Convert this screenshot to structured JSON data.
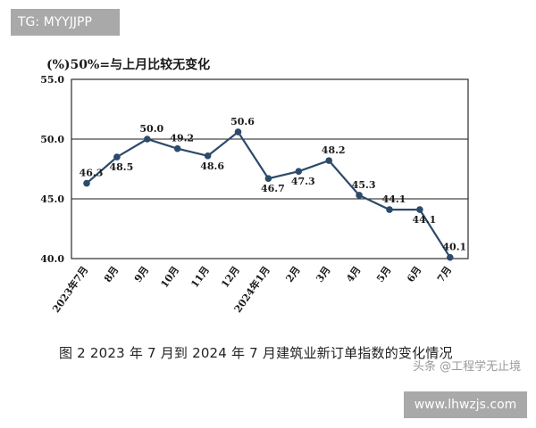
{
  "overlay_tag": "TG: MYYJJPP",
  "site_badge": "www.lhwzjs.com",
  "watermark": "头条 @工程学无止境",
  "caption": "图 2  2023 年 7 月到 2024 年 7 月建筑业新订单指数的变化情况",
  "chart_data": {
    "type": "line",
    "title": "(%)50%=与上月比较无变化",
    "categories": [
      "2023年7月",
      "8月",
      "9月",
      "10月",
      "11月",
      "12月",
      "2024年1月",
      "2月",
      "3月",
      "4月",
      "5月",
      "6月",
      "7月"
    ],
    "values": [
      46.3,
      48.5,
      50.0,
      49.2,
      48.6,
      50.6,
      46.7,
      47.3,
      48.2,
      45.3,
      44.1,
      44.1,
      40.1
    ],
    "ylim": [
      40.0,
      55.0
    ],
    "yticks": [
      "40.0",
      "45.0",
      "50.0",
      "55.0"
    ],
    "grid": true,
    "line_color": "#2d4a6b",
    "grid_color": "#1a1a1a"
  }
}
